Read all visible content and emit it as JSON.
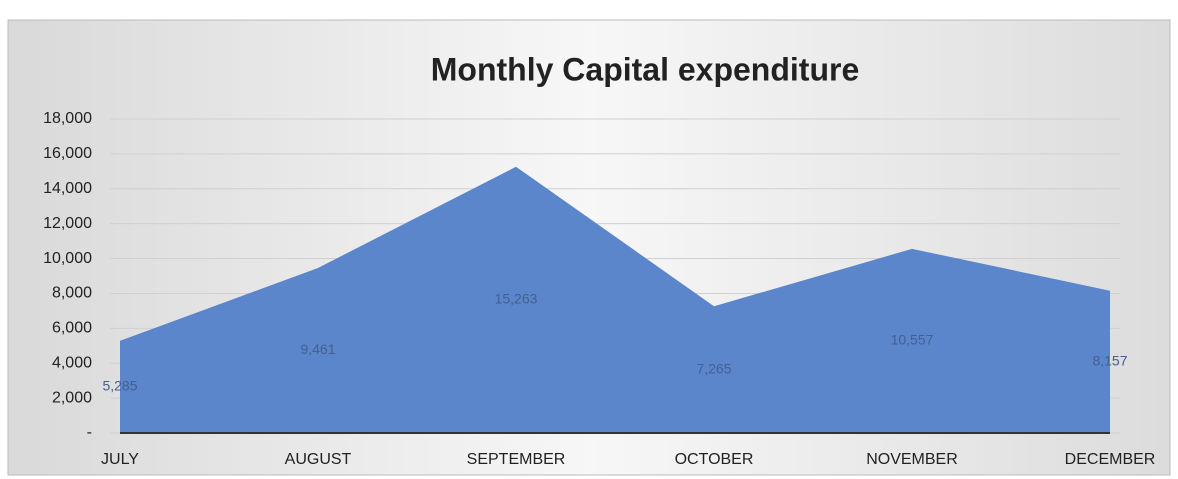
{
  "chart_data": {
    "type": "area",
    "title": "Monthly Capital expenditure",
    "categories": [
      "JULY",
      "AUGUST",
      "SEPTEMBER",
      "OCTOBER",
      "NOVEMBER",
      "DECEMBER"
    ],
    "values": [
      5285,
      9461,
      15263,
      7265,
      10557,
      8157
    ],
    "value_labels": [
      "5,285",
      "9,461",
      "15,263",
      "7,265",
      "10,557",
      "8,157"
    ],
    "color": "#5b86cc",
    "ylim": [
      0,
      18000
    ],
    "yticks": [
      {
        "value": 0,
        "label": "-"
      },
      {
        "value": 2000,
        "label": "2,000"
      },
      {
        "value": 4000,
        "label": "4,000"
      },
      {
        "value": 6000,
        "label": "6,000"
      },
      {
        "value": 8000,
        "label": "8,000"
      },
      {
        "value": 10000,
        "label": "10,000"
      },
      {
        "value": 12000,
        "label": "12,000"
      },
      {
        "value": 14000,
        "label": "14,000"
      },
      {
        "value": 16000,
        "label": "16,000"
      },
      {
        "value": 18000,
        "label": "18,000"
      }
    ],
    "grid": true
  }
}
